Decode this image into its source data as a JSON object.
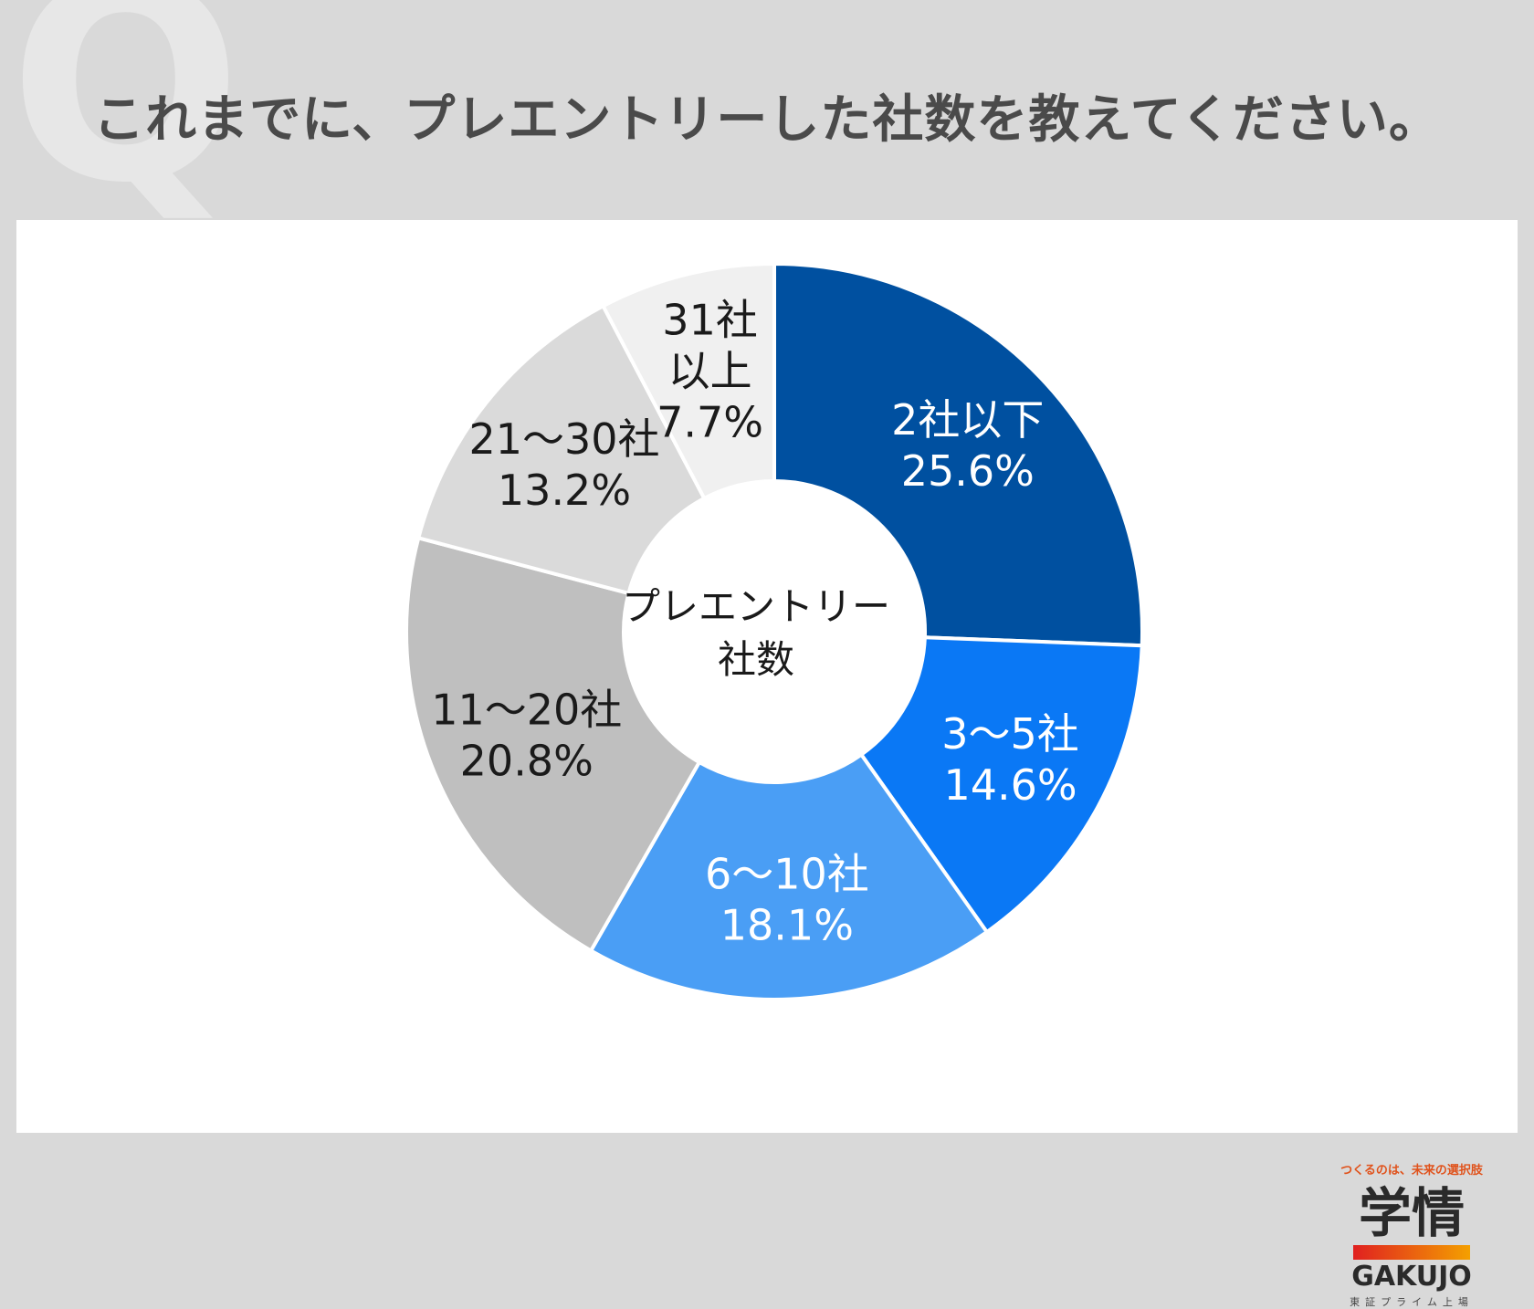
{
  "header": {
    "q_mark": "Q",
    "title": "これまでに、プレエントリーした社数を教えてください。"
  },
  "chart_data": {
    "type": "pie",
    "variant": "donut",
    "center_label": [
      "プレエントリー",
      "社数"
    ],
    "slices": [
      {
        "label": "2社以下",
        "lines": [
          "2社以下"
        ],
        "value": 25.6,
        "value_text": "25.6%",
        "color": "#0050a0",
        "text_color": "#ffffff"
      },
      {
        "label": "3〜5社",
        "lines": [
          "3〜5社"
        ],
        "value": 14.6,
        "value_text": "14.6%",
        "color": "#0a78f5",
        "text_color": "#ffffff"
      },
      {
        "label": "6〜10社",
        "lines": [
          "6〜10社"
        ],
        "value": 18.1,
        "value_text": "18.1%",
        "color": "#4a9ef5",
        "text_color": "#ffffff"
      },
      {
        "label": "11〜20社",
        "lines": [
          "11〜20社"
        ],
        "value": 20.8,
        "value_text": "20.8%",
        "color": "#bfbfbf",
        "text_color": "#1a1a1a"
      },
      {
        "label": "21〜30社",
        "lines": [
          "21〜30社"
        ],
        "value": 13.2,
        "value_text": "13.2%",
        "color": "#dadada",
        "text_color": "#1a1a1a"
      },
      {
        "label": "31社以上",
        "lines": [
          "31社",
          "以上"
        ],
        "value": 7.7,
        "value_text": "7.7%",
        "color": "#f0f0f0",
        "text_color": "#1a1a1a"
      }
    ]
  },
  "brand": {
    "tagline": "つくるのは、未来の選択肢",
    "mark": "学情",
    "name": "GAKUJO",
    "sub": "東証プライム上場"
  }
}
